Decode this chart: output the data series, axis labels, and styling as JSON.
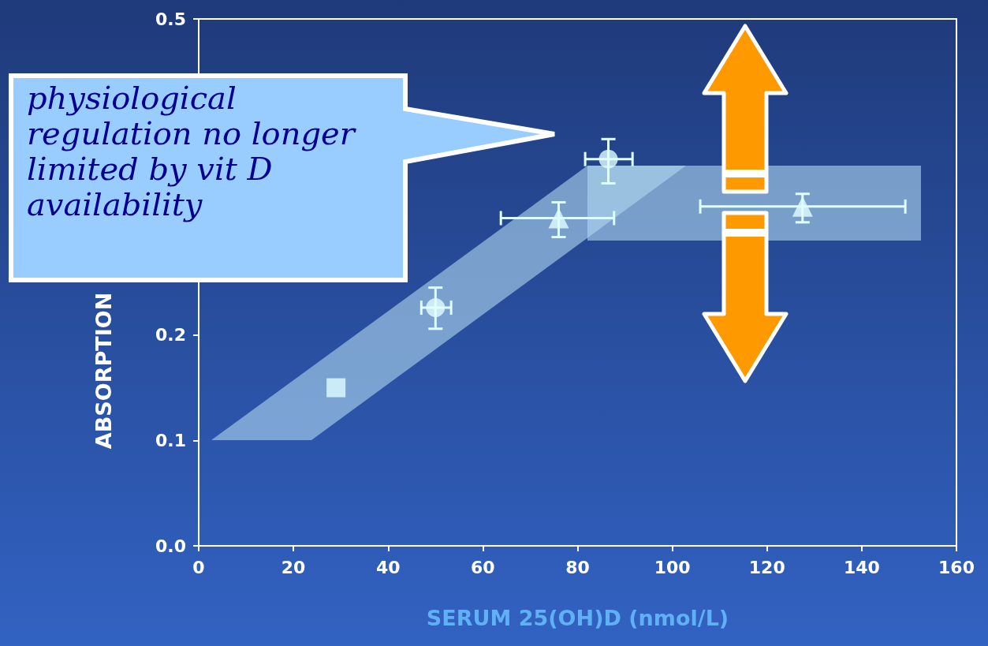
{
  "chart_data": {
    "type": "scatter",
    "xlabel": "SERUM 25(OH)D (nmol/L)",
    "ylabel": "ABSORPTION",
    "annotations": [
      "physiological regulation no longer limited by vit D availability"
    ],
    "xlim": [
      0,
      160
    ],
    "xticks": [
      0,
      20,
      40,
      60,
      80,
      100,
      120,
      140,
      160
    ],
    "ylim": [
      0,
      0.5
    ],
    "yticks": [
      {
        "value": 0,
        "label": "0.0"
      },
      0.1,
      0.2,
      0.5
    ],
    "grid": false,
    "series": [
      {
        "marker": "square",
        "color": "#e0ffff",
        "x": [
          29
        ],
        "values": [
          0.15
        ]
      },
      {
        "marker": "circle",
        "color": "#e0ffff",
        "x": [
          50,
          86.5
        ],
        "values": [
          0.226,
          0.367
        ],
        "errors": [
          [
            0.206,
            0.245
          ],
          [
            0.344,
            0.386
          ]
        ],
        "xerrors": [
          [
            47,
            53.3
          ],
          [
            81.6,
            91.6
          ]
        ]
      },
      {
        "marker": "triangle",
        "color": "#e0ffff",
        "x": [
          76,
          127.5
        ],
        "values": [
          0.311,
          0.322
        ],
        "errors": [
          [
            0.293,
            0.326
          ],
          [
            0.307,
            0.334
          ]
        ],
        "xerrors": [
          [
            63.8,
            87.7
          ],
          [
            105.9,
            149.2
          ]
        ]
      }
    ]
  }
}
